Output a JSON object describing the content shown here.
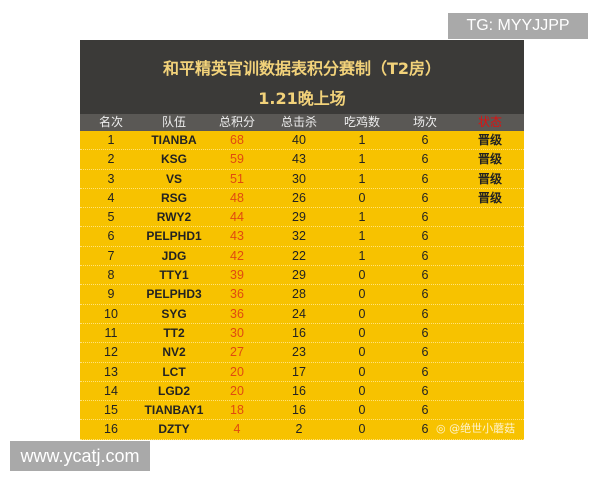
{
  "watermarks": {
    "top": "TG: MYYJJPP",
    "bottom": "www.ycatj.com",
    "weibo": "@绝世小蘑菇"
  },
  "title": "和平精英官训数据表积分赛制（T2房）",
  "subtitle": "1.21晚上场",
  "columns": [
    "名次",
    "队伍",
    "总积分",
    "总击杀",
    "吃鸡数",
    "场次",
    "状态"
  ],
  "rows": [
    [
      "1",
      "TIANBA",
      "68",
      "40",
      "1",
      "6",
      "晋级"
    ],
    [
      "2",
      "KSG",
      "59",
      "43",
      "1",
      "6",
      "晋级"
    ],
    [
      "3",
      "VS",
      "51",
      "30",
      "1",
      "6",
      "晋级"
    ],
    [
      "4",
      "RSG",
      "48",
      "26",
      "0",
      "6",
      "晋级"
    ],
    [
      "5",
      "RWY2",
      "44",
      "29",
      "1",
      "6",
      ""
    ],
    [
      "6",
      "PELPHD1",
      "43",
      "32",
      "1",
      "6",
      ""
    ],
    [
      "7",
      "JDG",
      "42",
      "22",
      "1",
      "6",
      ""
    ],
    [
      "8",
      "TTY1",
      "39",
      "29",
      "0",
      "6",
      ""
    ],
    [
      "9",
      "PELPHD3",
      "36",
      "28",
      "0",
      "6",
      ""
    ],
    [
      "10",
      "SYG",
      "36",
      "24",
      "0",
      "6",
      ""
    ],
    [
      "11",
      "TT2",
      "30",
      "16",
      "0",
      "6",
      ""
    ],
    [
      "12",
      "NV2",
      "27",
      "23",
      "0",
      "6",
      ""
    ],
    [
      "13",
      "LCT",
      "20",
      "17",
      "0",
      "6",
      ""
    ],
    [
      "14",
      "LGD2",
      "20",
      "16",
      "0",
      "6",
      ""
    ],
    [
      "15",
      "TIANBAY1",
      "18",
      "16",
      "0",
      "6",
      ""
    ],
    [
      "16",
      "DZTY",
      "4",
      "2",
      "0",
      "6",
      ""
    ]
  ]
}
